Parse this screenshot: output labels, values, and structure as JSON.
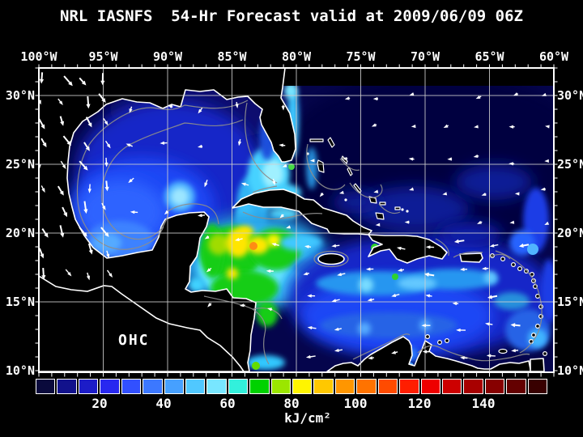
{
  "title": "NRL IASNFS  54-Hr Forecast valid at 2009/06/09 06Z",
  "map": {
    "field_label": "OHC"
  },
  "axes": {
    "top": [
      {
        "label": "100°W",
        "lon": 100
      },
      {
        "label": "95°W",
        "lon": 95
      },
      {
        "label": "90°W",
        "lon": 90
      },
      {
        "label": "85°W",
        "lon": 85
      },
      {
        "label": "80°W",
        "lon": 80
      },
      {
        "label": "75°W",
        "lon": 75
      },
      {
        "label": "70°W",
        "lon": 70
      },
      {
        "label": "65°W",
        "lon": 65
      },
      {
        "label": "60°W",
        "lon": 60
      }
    ],
    "left": [
      {
        "label": "30°N",
        "lat": 30
      },
      {
        "label": "25°N",
        "lat": 25
      },
      {
        "label": "20°N",
        "lat": 20
      },
      {
        "label": "15°N",
        "lat": 15
      },
      {
        "label": "10°N",
        "lat": 10
      }
    ],
    "right": [
      {
        "label": "30°N",
        "lat": 30
      },
      {
        "label": "25°N",
        "lat": 25
      },
      {
        "label": "20°N",
        "lat": 20
      },
      {
        "label": "15°N",
        "lat": 15
      },
      {
        "label": "10°N",
        "lat": 10
      }
    ]
  },
  "colorbar": {
    "unit": "kJ/cm²",
    "tick_labels": [
      "20",
      "40",
      "60",
      "80",
      "100",
      "120",
      "140"
    ],
    "tick_values": [
      20,
      40,
      60,
      80,
      100,
      120,
      140
    ],
    "range": [
      0,
      160
    ],
    "colors": [
      "#0a0a3c",
      "#12128c",
      "#1c1cc8",
      "#2828f0",
      "#3250ff",
      "#3c78ff",
      "#46a0ff",
      "#50c8ff",
      "#78e6ff",
      "#32f0dc",
      "#00d200",
      "#9be600",
      "#fff500",
      "#ffc800",
      "#ff9600",
      "#ff7300",
      "#ff4b00",
      "#ff1e00",
      "#ee0000",
      "#cd0000",
      "#a80000",
      "#870000",
      "#640000",
      "#380000"
    ]
  },
  "chart_data": {
    "type": "heatmap",
    "title": "NRL IASNFS 54-Hr Forecast valid at 2009/06/09 06Z",
    "variable": "OHC",
    "unit": "kJ/cm²",
    "lon_labels_deg_w": [
      100,
      95,
      90,
      85,
      80,
      75,
      70,
      65,
      60
    ],
    "lat_labels_deg_n": [
      30,
      25,
      20,
      15,
      10
    ],
    "scale_ticks": [
      20,
      40,
      60,
      80,
      100,
      120,
      140
    ],
    "notable_features": [
      {
        "region": "NW Caribbean south of Cuba",
        "approx_value_kj_cm2": "80-100"
      },
      {
        "region": "Gulf of Mexico Loop Current plume",
        "approx_value_kj_cm2": "50-70"
      },
      {
        "region": "Central Caribbean band near 15N",
        "approx_value_kj_cm2": "40-60"
      },
      {
        "region": "Gulf of Mexico shelf and west gulf",
        "approx_value_kj_cm2": "10-35"
      },
      {
        "region": "Open Atlantic northeast of Bahamas",
        "approx_value_kj_cm2": "0-20"
      }
    ]
  }
}
